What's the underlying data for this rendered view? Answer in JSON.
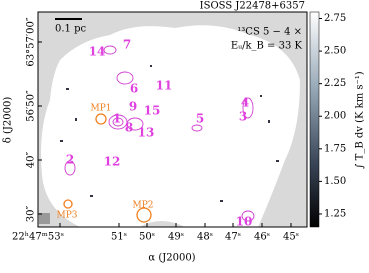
{
  "chart_data": {
    "type": "map",
    "title": "ISOSS J22478+6357",
    "annotation": [
      "¹³CS 5 − 4 ×",
      "Eᵤ/k_B = 33 K"
    ],
    "scale_bar": "0.1 pc",
    "xlabel": "α (J2000)",
    "ylabel": "δ (J2000)",
    "xtick_labels": [
      "22ʰ47ᵐ53ˢ",
      "51ˢ",
      "50ˢ",
      "49ˢ",
      "48ˢ",
      "47ˢ",
      "46ˢ",
      "45ˢ"
    ],
    "ytick_labels": [
      "63°57′00″",
      "56′50″",
      "40″",
      "30″"
    ],
    "colorbar": {
      "label": "∫ T_B dv (K km s⁻¹)",
      "lim": [
        1.15,
        2.8
      ],
      "ticks": [
        1.25,
        {
          "value": 1.5,
          "label": "1.50"
        },
        1.75,
        {
          "value": 2.0,
          "label": "2.00"
        },
        2.25,
        {
          "value": 2.5,
          "label": "2.50"
        },
        2.75
      ]
    },
    "sources": [
      "14",
      "7",
      "6",
      "11",
      "9",
      "15",
      "1",
      "8",
      "13",
      "5",
      "4",
      "3",
      "12",
      "2",
      "10"
    ],
    "markers": [
      "MP1",
      "MP2",
      "MP3"
    ]
  }
}
